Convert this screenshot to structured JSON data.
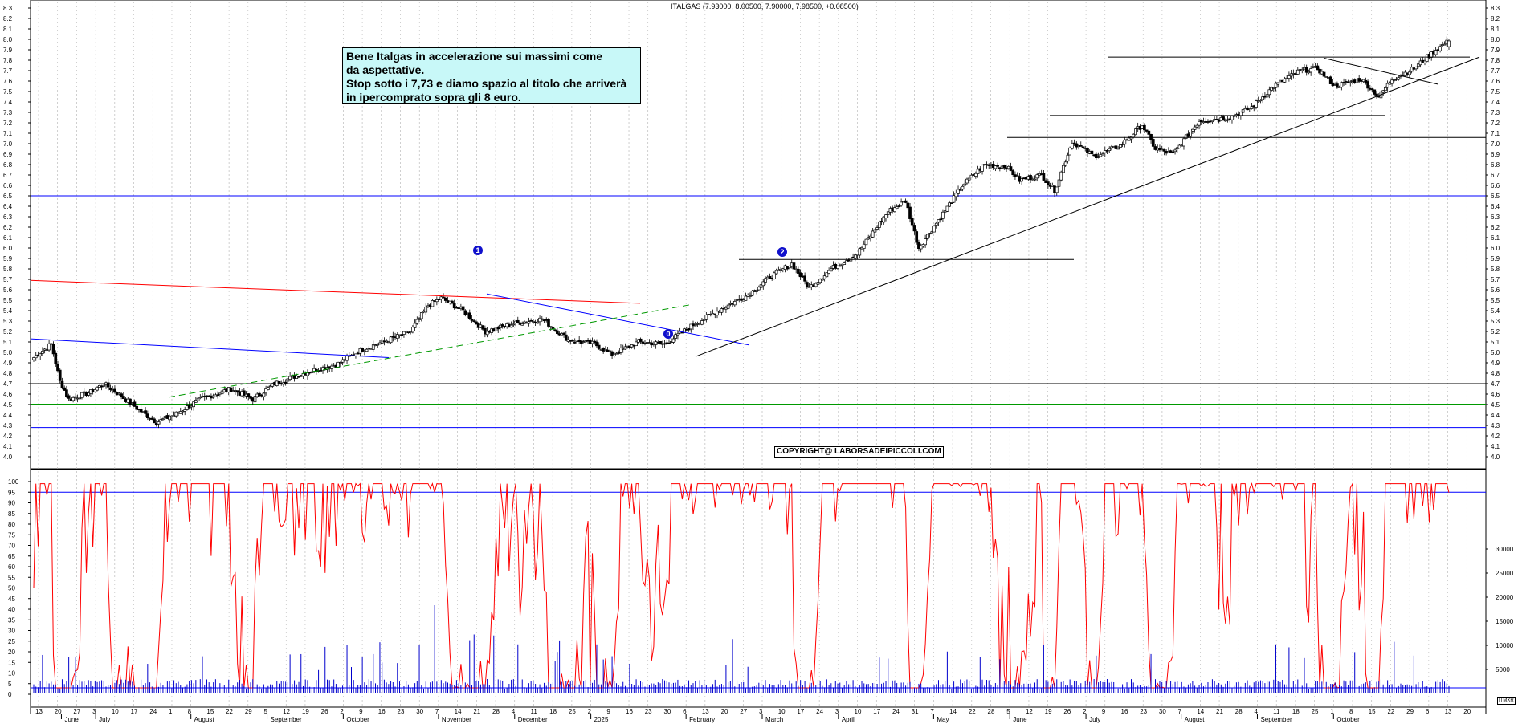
{
  "header": {
    "title": "ITALGAS (7.93000, 8.00500, 7.90000, 7.98500, +0.08500)"
  },
  "annotations": {
    "comment_lines": [
      "Bene Italgas in accelerazione sui massimi come",
      "da aspettative.",
      "Stop sotto i 7,73 e diamo spazio al titolo che arriverà",
      "in ipercomprato sopra gli 8 euro."
    ],
    "copyright": "COPYRIGHT@ LABORSADEIPICCOLI.COM",
    "marker_1": "1",
    "marker_2": "2",
    "marker_0": "0",
    "corner_tag": "ITMXR"
  },
  "colors": {
    "candle": "#000000",
    "support_blue": "#0000ff",
    "support_green": "#009900",
    "resistance_red": "#ff0000",
    "trend_black": "#000000",
    "oscillator": "#ff0000",
    "volume": "#0000cc",
    "comment_bg": "#c8f8f8"
  },
  "chart_data": [
    {
      "type": "candlestick",
      "title": "ITALGAS (7.93000, 8.00500, 7.90000, 7.98500, +0.08500)",
      "ylim": [
        3.9,
        8.3
      ],
      "y_ticks": [
        "4.0",
        "4.1",
        "4.2",
        "4.3",
        "4.4",
        "4.5",
        "4.6",
        "4.7",
        "4.8",
        "4.9",
        "5.0",
        "5.1",
        "5.2",
        "5.3",
        "5.4",
        "5.5",
        "5.6",
        "5.7",
        "5.8",
        "5.9",
        "6.0",
        "6.1",
        "6.2",
        "6.3",
        "6.4",
        "6.5",
        "6.6",
        "6.7",
        "6.8",
        "6.9",
        "7.0",
        "7.1",
        "7.2",
        "7.3",
        "7.4",
        "7.5",
        "7.6",
        "7.7",
        "7.8",
        "7.9",
        "8.0",
        "8.1",
        "8.2",
        "8.3"
      ],
      "last_bar": {
        "open": 7.93,
        "high": 8.005,
        "low": 7.9,
        "close": 7.985,
        "change": 0.085
      },
      "price_path": [
        {
          "t": 0,
          "v": 4.95
        },
        {
          "t": 8,
          "v": 5.08
        },
        {
          "t": 12,
          "v": 4.72
        },
        {
          "t": 16,
          "v": 4.55
        },
        {
          "t": 26,
          "v": 4.62
        },
        {
          "t": 32,
          "v": 4.7
        },
        {
          "t": 40,
          "v": 4.58
        },
        {
          "t": 48,
          "v": 4.45
        },
        {
          "t": 56,
          "v": 4.33
        },
        {
          "t": 64,
          "v": 4.4
        },
        {
          "t": 76,
          "v": 4.55
        },
        {
          "t": 90,
          "v": 4.65
        },
        {
          "t": 100,
          "v": 4.55
        },
        {
          "t": 110,
          "v": 4.7
        },
        {
          "t": 126,
          "v": 4.82
        },
        {
          "t": 138,
          "v": 4.88
        },
        {
          "t": 150,
          "v": 5.03
        },
        {
          "t": 162,
          "v": 5.12
        },
        {
          "t": 172,
          "v": 5.2
        },
        {
          "t": 180,
          "v": 5.45
        },
        {
          "t": 186,
          "v": 5.52
        },
        {
          "t": 196,
          "v": 5.4
        },
        {
          "t": 206,
          "v": 5.2
        },
        {
          "t": 220,
          "v": 5.28
        },
        {
          "t": 232,
          "v": 5.32
        },
        {
          "t": 244,
          "v": 5.12
        },
        {
          "t": 256,
          "v": 5.08
        },
        {
          "t": 264,
          "v": 4.98
        },
        {
          "t": 276,
          "v": 5.1
        },
        {
          "t": 288,
          "v": 5.08
        },
        {
          "t": 300,
          "v": 5.25
        },
        {
          "t": 314,
          "v": 5.42
        },
        {
          "t": 326,
          "v": 5.55
        },
        {
          "t": 336,
          "v": 5.72
        },
        {
          "t": 346,
          "v": 5.85
        },
        {
          "t": 354,
          "v": 5.62
        },
        {
          "t": 364,
          "v": 5.8
        },
        {
          "t": 376,
          "v": 5.95
        },
        {
          "t": 390,
          "v": 6.35
        },
        {
          "t": 398,
          "v": 6.45
        },
        {
          "t": 404,
          "v": 6.0
        },
        {
          "t": 414,
          "v": 6.3
        },
        {
          "t": 424,
          "v": 6.6
        },
        {
          "t": 434,
          "v": 6.8
        },
        {
          "t": 444,
          "v": 6.78
        },
        {
          "t": 450,
          "v": 6.65
        },
        {
          "t": 460,
          "v": 6.7
        },
        {
          "t": 466,
          "v": 6.55
        },
        {
          "t": 474,
          "v": 7.02
        },
        {
          "t": 484,
          "v": 6.88
        },
        {
          "t": 496,
          "v": 6.98
        },
        {
          "t": 506,
          "v": 7.18
        },
        {
          "t": 512,
          "v": 6.95
        },
        {
          "t": 520,
          "v": 6.9
        },
        {
          "t": 532,
          "v": 7.22
        },
        {
          "t": 546,
          "v": 7.25
        },
        {
          "t": 556,
          "v": 7.35
        },
        {
          "t": 566,
          "v": 7.55
        },
        {
          "t": 578,
          "v": 7.7
        },
        {
          "t": 586,
          "v": 7.72
        },
        {
          "t": 594,
          "v": 7.55
        },
        {
          "t": 606,
          "v": 7.62
        },
        {
          "t": 614,
          "v": 7.45
        },
        {
          "t": 620,
          "v": 7.62
        },
        {
          "t": 630,
          "v": 7.72
        },
        {
          "t": 640,
          "v": 7.9
        },
        {
          "t": 646,
          "v": 7.985
        }
      ],
      "horizontal_levels": [
        {
          "value": 4.28,
          "color": "blue"
        },
        {
          "value": 4.5,
          "color": "green"
        },
        {
          "value": 4.7,
          "color": "black"
        },
        {
          "value": 6.5,
          "color": "blue"
        }
      ]
    },
    {
      "type": "line",
      "name": "oscillator",
      "ylim": [
        0,
        100
      ],
      "y_ticks": [
        "0",
        "5",
        "10",
        "15",
        "20",
        "25",
        "30",
        "35",
        "40",
        "45",
        "50",
        "55",
        "60",
        "65",
        "70",
        "75",
        "80",
        "85",
        "90",
        "95",
        "100"
      ],
      "overbought": 95,
      "oversold": 3
    },
    {
      "type": "bar",
      "name": "volume",
      "right_ticks": [
        "5000",
        "10000",
        "15000",
        "20000",
        "25000",
        "30000"
      ]
    }
  ],
  "x_axis": {
    "days": [
      "13",
      "20",
      "27",
      "3",
      "10",
      "17",
      "24",
      "1",
      "8",
      "15",
      "22",
      "29",
      "5",
      "12",
      "19",
      "26",
      "2",
      "9",
      "16",
      "23",
      "30",
      "7",
      "14",
      "21",
      "28",
      "4",
      "11",
      "18",
      "25",
      "2",
      "9",
      "16",
      "23",
      "30",
      "6",
      "13",
      "20",
      "27",
      "3",
      "10",
      "17",
      "24",
      "3",
      "10",
      "17",
      "24",
      "31",
      "7",
      "14",
      "22",
      "28",
      "5",
      "12",
      "19",
      "26",
      "2",
      "9",
      "16",
      "23",
      "30",
      "7",
      "14",
      "21",
      "28",
      "4",
      "11",
      "18",
      "25",
      "1",
      "8",
      "15",
      "22",
      "29",
      "6",
      "13",
      "20"
    ],
    "months": [
      "June",
      "July",
      "August",
      "September",
      "October",
      "November",
      "December",
      "2025",
      "February",
      "March",
      "April",
      "May",
      "June",
      "July",
      "August",
      "September",
      "October"
    ]
  }
}
